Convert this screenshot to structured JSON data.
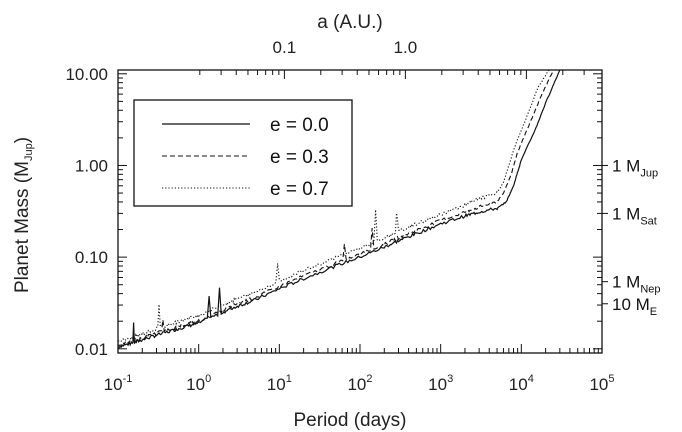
{
  "chart_data": {
    "type": "line",
    "title": "",
    "xlabel": "Period (days)",
    "ylabel_main": "Planet Mass (M",
    "ylabel_sub": "Jup",
    "ylabel_close": ")",
    "top_axis_label": "a (A.U.)",
    "xscale": "log",
    "yscale": "log",
    "xlim": [
      0.1,
      100000
    ],
    "ylim": [
      0.009,
      11
    ],
    "x_ticks": [
      {
        "value": 0.1,
        "base": "10",
        "exp": "-1"
      },
      {
        "value": 1,
        "base": "10",
        "exp": "0"
      },
      {
        "value": 10,
        "base": "10",
        "exp": "1"
      },
      {
        "value": 100,
        "base": "10",
        "exp": "2"
      },
      {
        "value": 1000,
        "base": "10",
        "exp": "3"
      },
      {
        "value": 10000,
        "base": "10",
        "exp": "4"
      },
      {
        "value": 100000,
        "base": "10",
        "exp": "5"
      }
    ],
    "y_ticks": [
      {
        "value": 0.01,
        "label": "0.01"
      },
      {
        "value": 0.1,
        "label": "0.10"
      },
      {
        "value": 1,
        "label": "1.00"
      },
      {
        "value": 10,
        "label": "10.00"
      }
    ],
    "top_ticks": [
      {
        "value": 0.1,
        "label": "0.1"
      },
      {
        "value": 1.0,
        "label": "1.0"
      }
    ],
    "reference_masses": [
      {
        "value": 1.0,
        "main": "1 M",
        "sub": "Jup",
        "type": "sub"
      },
      {
        "value": 0.3,
        "main": "1 M",
        "sub": "Sat",
        "type": "sub"
      },
      {
        "value": 0.054,
        "main": "1 M",
        "sub": "Nep",
        "type": "sub"
      },
      {
        "value": 0.031,
        "main": "10 M",
        "sub": "E",
        "type": "sub"
      }
    ],
    "legend_position": "top-left",
    "series": [
      {
        "name": "e = 0.0",
        "style": "solid",
        "x": [
          0.1,
          0.15,
          0.2,
          0.3,
          0.5,
          0.7,
          1,
          2,
          3,
          5,
          10,
          20,
          50,
          100,
          200,
          300,
          500,
          1000,
          2000,
          3000,
          5000,
          6500,
          8000,
          10000,
          15000,
          20000,
          30000
        ],
        "y": [
          0.0105,
          0.0115,
          0.0125,
          0.014,
          0.016,
          0.0175,
          0.019,
          0.025,
          0.029,
          0.034,
          0.045,
          0.058,
          0.08,
          0.1,
          0.128,
          0.15,
          0.18,
          0.23,
          0.28,
          0.31,
          0.34,
          0.4,
          0.6,
          1.15,
          2.5,
          4.8,
          11
        ]
      },
      {
        "name": "e = 0.3",
        "style": "dashed",
        "x": [
          0.1,
          0.15,
          0.2,
          0.3,
          0.5,
          0.7,
          1,
          2,
          3,
          5,
          10,
          20,
          50,
          100,
          200,
          300,
          500,
          1000,
          2000,
          3000,
          5000,
          6000,
          7500,
          9000,
          13000,
          18000,
          25000
        ],
        "y": [
          0.011,
          0.012,
          0.013,
          0.0148,
          0.0168,
          0.0185,
          0.02,
          0.026,
          0.031,
          0.036,
          0.048,
          0.062,
          0.085,
          0.107,
          0.137,
          0.162,
          0.195,
          0.25,
          0.31,
          0.35,
          0.4,
          0.5,
          0.8,
          1.4,
          3.0,
          6.0,
          11
        ]
      },
      {
        "name": "e = 0.7",
        "style": "dotted",
        "x": [
          0.1,
          0.15,
          0.2,
          0.3,
          0.5,
          0.7,
          1,
          2,
          3,
          5,
          10,
          20,
          50,
          100,
          200,
          300,
          500,
          1000,
          2000,
          3000,
          5000,
          6000,
          7000,
          8500,
          12000,
          16000,
          22000
        ],
        "y": [
          0.012,
          0.013,
          0.0145,
          0.0165,
          0.019,
          0.021,
          0.023,
          0.03,
          0.035,
          0.041,
          0.055,
          0.071,
          0.098,
          0.125,
          0.16,
          0.19,
          0.23,
          0.29,
          0.37,
          0.43,
          0.5,
          0.65,
          1.0,
          1.7,
          3.6,
          7.0,
          11
        ]
      }
    ]
  }
}
